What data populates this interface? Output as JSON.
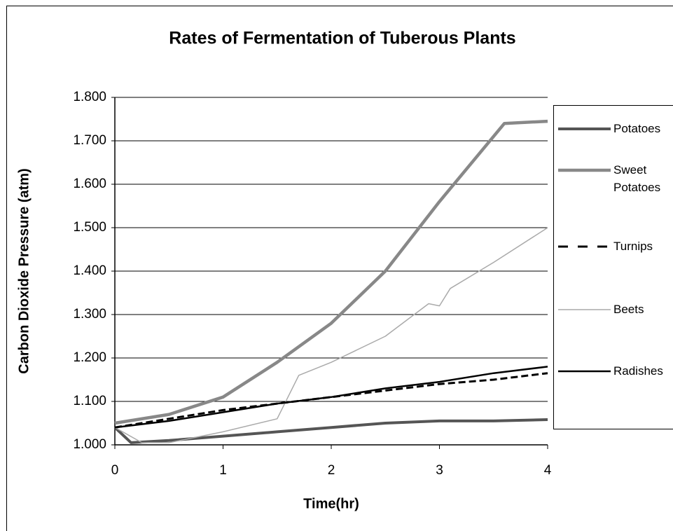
{
  "chart_data": {
    "type": "line",
    "title": "Rates of Fermentation of Tuberous Plants",
    "x_label": "Time(hr)",
    "y_label": "Carbon Dioxide Pressure (atm)",
    "xlim": [
      0,
      4
    ],
    "xticks": [
      0,
      1,
      2,
      3,
      4
    ],
    "ylim": [
      1,
      1.8
    ],
    "yticks": [
      {
        "value": 1,
        "label": "1.000"
      },
      {
        "value": 1.1,
        "label": "1.100"
      },
      {
        "value": 1.2,
        "label": "1.200"
      },
      {
        "value": 1.3,
        "label": "1.300"
      },
      {
        "value": 1.4,
        "label": "1.400"
      },
      {
        "value": 1.5,
        "label": "1.500"
      },
      {
        "value": 1.6,
        "label": "1.600"
      },
      {
        "value": 1.7,
        "label": "1.700"
      },
      {
        "value": 1.8,
        "label": "1.800"
      }
    ],
    "grid": true,
    "legend": "right",
    "series": [
      {
        "name": "Potatoes",
        "color": "#555555",
        "x": [
          0,
          0.15,
          0.5,
          1,
          1.5,
          2,
          2.5,
          3,
          3.5,
          4
        ],
        "values": [
          1.04,
          1.005,
          1.01,
          1.02,
          1.03,
          1.04,
          1.05,
          1.055,
          1.055,
          1.058
        ]
      },
      {
        "name": "Sweet Potatoes",
        "color": "#888888",
        "x": [
          0,
          0.5,
          1,
          1.5,
          2,
          2.5,
          3,
          3.6,
          4
        ],
        "values": [
          1.05,
          1.07,
          1.11,
          1.19,
          1.28,
          1.4,
          1.56,
          1.74,
          1.745
        ]
      },
      {
        "name": "Turnips",
        "color": "#000000",
        "dashed": true,
        "x": [
          0,
          0.5,
          1,
          1.5,
          2,
          2.5,
          3,
          3.5,
          4
        ],
        "values": [
          1.04,
          1.06,
          1.08,
          1.095,
          1.11,
          1.125,
          1.14,
          1.15,
          1.165
        ]
      },
      {
        "name": "Beets",
        "color": "#aaaaaa",
        "x": [
          0,
          0.25,
          0.5,
          1,
          1.5,
          1.7,
          2,
          2.5,
          2.9,
          3,
          3.1,
          3.5,
          4
        ],
        "values": [
          1.04,
          1.005,
          1.005,
          1.03,
          1.06,
          1.16,
          1.19,
          1.25,
          1.325,
          1.32,
          1.36,
          1.42,
          1.5
        ]
      },
      {
        "name": "Radishes",
        "color": "#000000",
        "x": [
          0,
          0.5,
          1,
          1.5,
          2,
          2.5,
          3,
          3.5,
          4
        ],
        "values": [
          1.04,
          1.055,
          1.075,
          1.095,
          1.11,
          1.13,
          1.145,
          1.165,
          1.18
        ]
      }
    ]
  }
}
